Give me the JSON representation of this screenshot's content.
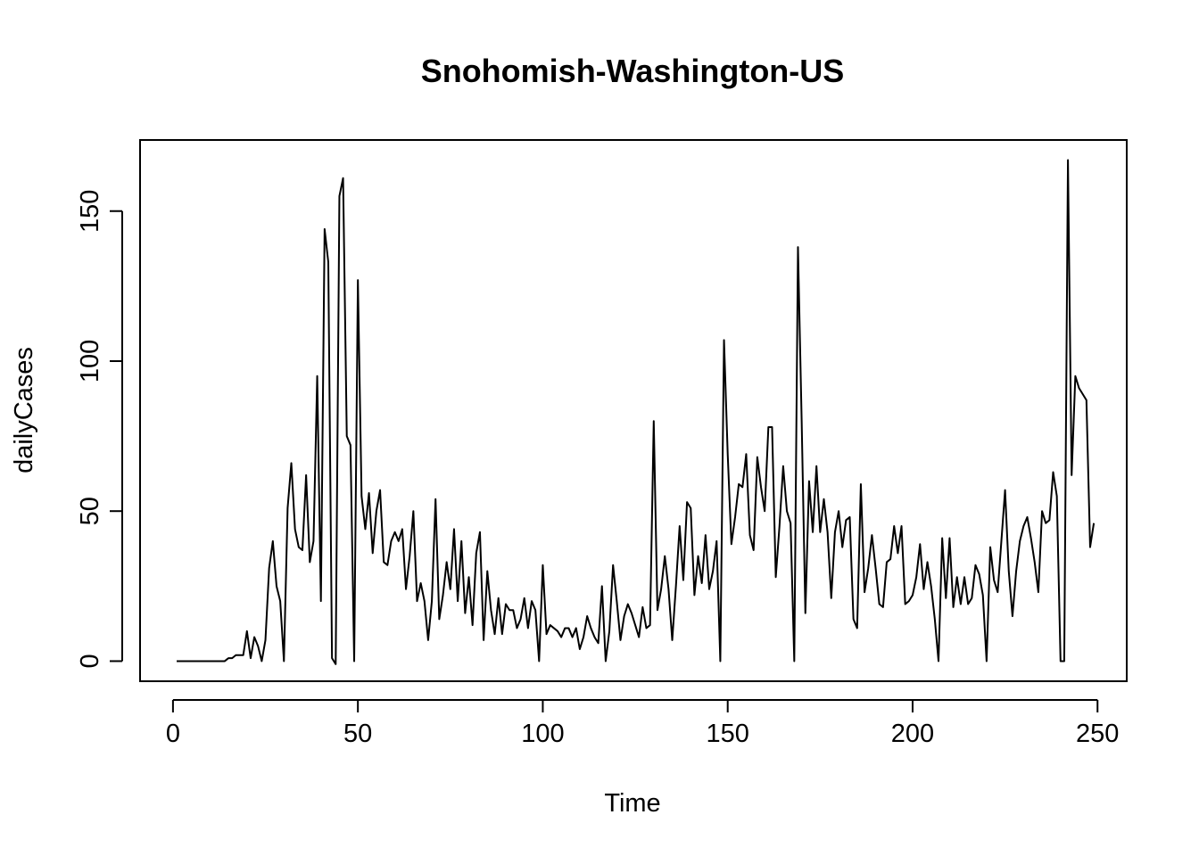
{
  "chart_data": {
    "type": "line",
    "title": "Snohomish-Washington-US",
    "xlabel": "Time",
    "ylabel": "dailyCases",
    "xlim": [
      -8.9,
      257.9
    ],
    "ylim": [
      -6.7,
      173.7
    ],
    "grid": false,
    "xticks": [
      0,
      50,
      100,
      150,
      200,
      250
    ],
    "yticks": [
      0,
      50,
      100,
      150
    ],
    "xtick_labels": [
      "0",
      "50",
      "100",
      "150",
      "200",
      "250"
    ],
    "ytick_labels": [
      "0",
      "50",
      "100",
      "150"
    ],
    "series": [
      {
        "color": "#000000",
        "values": [
          0,
          0,
          0,
          0,
          0,
          0,
          0,
          0,
          0,
          0,
          0,
          0,
          0,
          0,
          1,
          1,
          2,
          2,
          2,
          10,
          1,
          8,
          5,
          0,
          7,
          31,
          40,
          25,
          20,
          0,
          51,
          66,
          44,
          38,
          37,
          62,
          33,
          40,
          95,
          20,
          144,
          133,
          1,
          -1,
          155,
          161,
          75,
          72,
          0,
          127,
          55,
          44,
          56,
          36,
          50,
          57,
          33,
          32,
          40,
          43,
          40,
          44,
          24,
          35,
          50,
          20,
          26,
          20,
          7,
          20,
          54,
          14,
          22,
          33,
          24,
          44,
          20,
          40,
          16,
          28,
          12,
          36,
          43,
          7,
          30,
          17,
          9,
          21,
          9,
          19,
          17,
          17,
          11,
          14,
          21,
          11,
          20,
          17,
          0,
          32,
          9,
          12,
          11,
          10,
          8,
          11,
          11,
          8,
          11,
          4,
          8,
          15,
          11,
          8,
          6,
          25,
          0,
          10,
          32,
          20,
          7,
          15,
          19,
          16,
          12,
          8,
          18,
          11,
          12,
          80,
          17,
          24,
          35,
          24,
          7,
          25,
          45,
          27,
          53,
          51,
          22,
          35,
          26,
          42,
          24,
          30,
          40,
          0,
          107,
          69,
          39,
          48,
          59,
          58,
          69,
          42,
          37,
          68,
          58,
          50,
          78,
          78,
          28,
          45,
          65,
          50,
          46,
          0,
          138,
          80,
          16,
          60,
          43,
          65,
          43,
          54,
          43,
          21,
          43,
          50,
          38,
          47,
          48,
          14,
          11,
          59,
          23,
          31,
          42,
          31,
          19,
          18,
          33,
          34,
          45,
          36,
          45,
          19,
          20,
          22,
          28,
          39,
          24,
          33,
          25,
          14,
          0,
          41,
          21,
          41,
          18,
          28,
          19,
          28,
          19,
          21,
          32,
          29,
          22,
          0,
          38,
          27,
          23,
          40,
          57,
          30,
          15,
          30,
          40,
          45,
          48,
          41,
          33,
          23,
          50,
          46,
          47,
          63,
          55,
          0,
          0,
          167,
          62,
          95,
          91,
          89,
          87,
          38,
          46
        ]
      }
    ]
  }
}
